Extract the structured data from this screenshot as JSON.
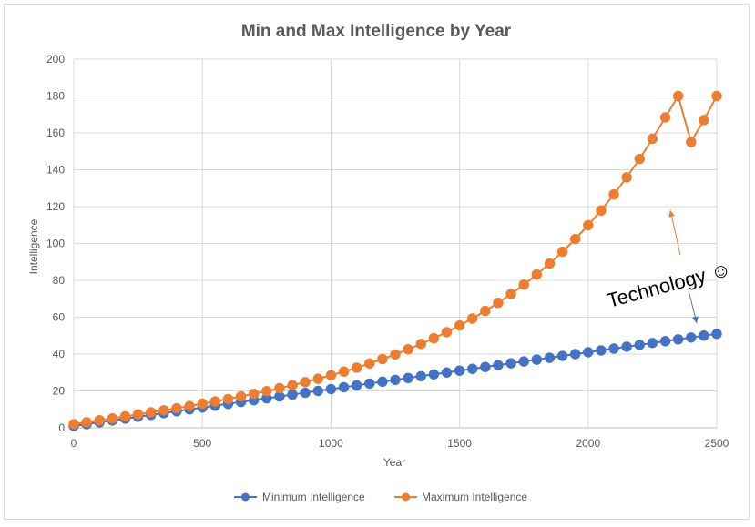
{
  "colors": {
    "min_series": "#4472c4",
    "max_series": "#ed7d31",
    "grid": "#d9d9d9",
    "text": "#595959"
  },
  "chart_data": {
    "type": "line",
    "title": "Min and Max Intelligence by Year",
    "xlabel": "Year",
    "ylabel": "Intelligence",
    "xlim": [
      0,
      2500
    ],
    "ylim": [
      0,
      200
    ],
    "x_ticks": [
      "0",
      "500",
      "1000",
      "1500",
      "2000",
      "2500"
    ],
    "y_ticks": [
      "0",
      "20",
      "40",
      "60",
      "80",
      "100",
      "120",
      "140",
      "160",
      "180",
      "200"
    ],
    "grid": true,
    "legend_position": "bottom",
    "x": [
      0,
      50,
      100,
      150,
      200,
      250,
      300,
      350,
      400,
      450,
      500,
      550,
      600,
      650,
      700,
      750,
      800,
      850,
      900,
      950,
      1000,
      1050,
      1100,
      1150,
      1200,
      1250,
      1300,
      1350,
      1400,
      1450,
      1500,
      1550,
      1600,
      1650,
      1700,
      1750,
      1800,
      1850,
      1900,
      1950,
      2000,
      2050,
      2100,
      2150,
      2200,
      2250,
      2300,
      2350,
      2400,
      2450,
      2500
    ],
    "series": [
      {
        "name": "Minimum Intelligence",
        "color": "#4472c4",
        "values": [
          1,
          2,
          3,
          4,
          5,
          6,
          7,
          8,
          9,
          10,
          11,
          12,
          13,
          14,
          15,
          16,
          17,
          18,
          19,
          20,
          21,
          22,
          23,
          24,
          25,
          26,
          27,
          28,
          29,
          30,
          31,
          32,
          33,
          34,
          35,
          36,
          37,
          38,
          39,
          40,
          41,
          42,
          43,
          44,
          45,
          46,
          47,
          48,
          49,
          50,
          51
        ]
      },
      {
        "name": "Maximum Intelligence",
        "color": "#ed7d31",
        "values": [
          2.0,
          3.0,
          4.1,
          5.1,
          6.2,
          7.3,
          8.4,
          9.5,
          10.6,
          11.8,
          13.1,
          14.3,
          15.6,
          17.0,
          18.4,
          19.9,
          21.5,
          23.1,
          24.8,
          26.6,
          28.5,
          30.5,
          32.6,
          34.9,
          37.3,
          39.8,
          42.6,
          45.5,
          48.6,
          51.9,
          55.5,
          59.3,
          63.4,
          67.8,
          72.6,
          77.7,
          83.2,
          89.1,
          95.5,
          102.4,
          109.9,
          117.9,
          126.6,
          135.9,
          145.9,
          156.8,
          168.4,
          180.0,
          155.0,
          167.0,
          180.0
        ]
      }
    ],
    "annotations": [
      {
        "text": "Technology ☺"
      }
    ]
  }
}
